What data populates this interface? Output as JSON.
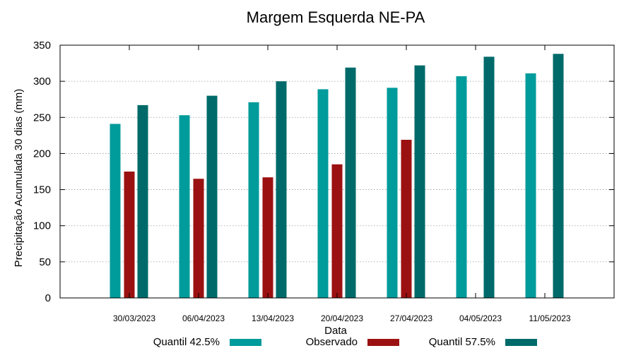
{
  "chart_data": {
    "type": "bar",
    "title": "Margem Esquerda NE-PA",
    "xlabel": "Data",
    "ylabel": "Precipitação Acumulada 30 dias (mm)",
    "ylim": [
      0,
      350
    ],
    "yticks": [
      0,
      50,
      100,
      150,
      200,
      250,
      300,
      350
    ],
    "grid": true,
    "legend_position": "bottom",
    "categories": [
      "30/03/2023",
      "06/04/2023",
      "13/04/2023",
      "20/04/2023",
      "27/04/2023",
      "04/05/2023",
      "11/05/2023"
    ],
    "series": [
      {
        "name": "Quantil 42.5%",
        "color": "#009b9b",
        "values": [
          241,
          253,
          271,
          289,
          291,
          307,
          311
        ]
      },
      {
        "name": "Observado",
        "color": "#9b1111",
        "values": [
          175,
          165,
          167,
          185,
          219,
          null,
          null
        ]
      },
      {
        "name": "Quantil 57.5%",
        "color": "#006a6a",
        "values": [
          267,
          280,
          300,
          319,
          322,
          334,
          338
        ]
      }
    ]
  }
}
